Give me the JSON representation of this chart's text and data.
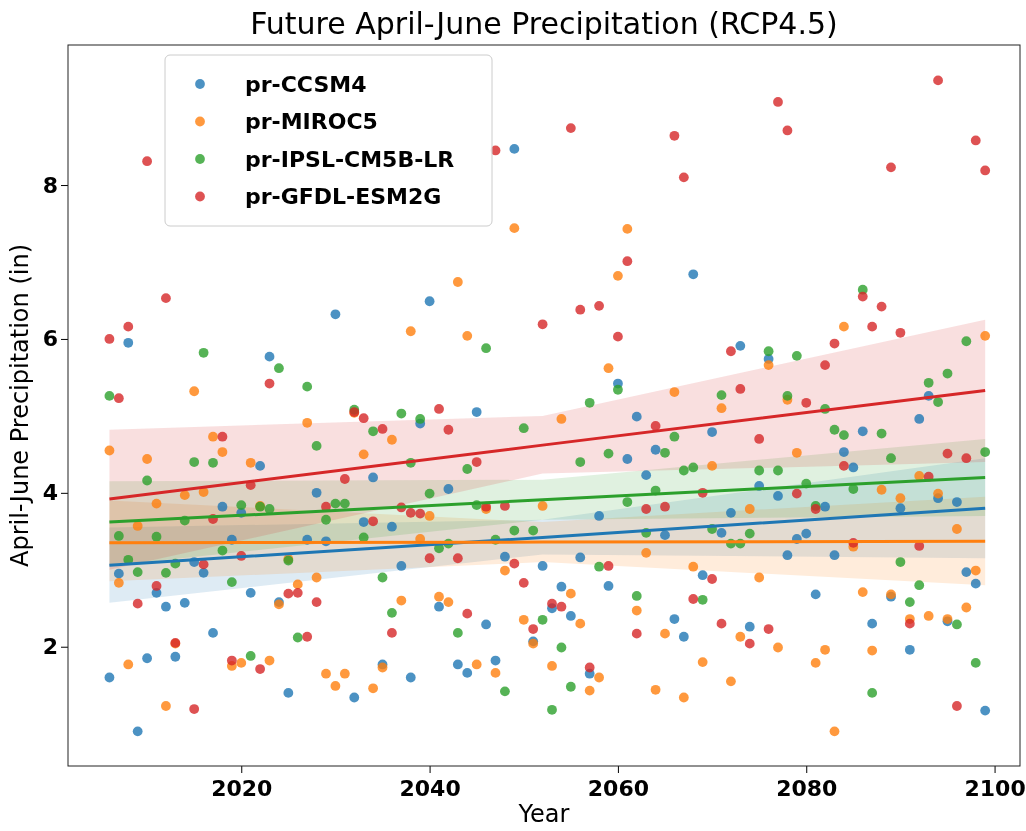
{
  "chart_data": {
    "type": "scatter",
    "title": "Future April-June Precipitation (RCP4.5)",
    "xlabel": "Year",
    "ylabel": "April-June Precipitation (in)",
    "xlim": [
      2001.6,
      2102.7
    ],
    "ylim": [
      0.45,
      9.82
    ],
    "xticks": [
      2020,
      2040,
      2060,
      2080,
      2100
    ],
    "yticks": [
      2,
      4,
      6,
      8
    ],
    "grid": false,
    "legend": "top left",
    "marker": "circle",
    "series": [
      {
        "name": "pr-CCSM4",
        "color": "#1f77b4",
        "x": [
          2006,
          2007,
          2008,
          2009,
          2010,
          2011,
          2012,
          2013,
          2014,
          2015,
          2016,
          2017,
          2018,
          2019,
          2020,
          2021,
          2022,
          2023,
          2024,
          2025,
          2027,
          2028,
          2029,
          2030,
          2032,
          2033,
          2034,
          2035,
          2036,
          2037,
          2038,
          2039,
          2040,
          2041,
          2042,
          2043,
          2044,
          2045,
          2046,
          2047,
          2048,
          2049,
          2051,
          2052,
          2053,
          2054,
          2055,
          2056,
          2057,
          2058,
          2059,
          2060,
          2061,
          2062,
          2063,
          2064,
          2065,
          2066,
          2067,
          2068,
          2069,
          2070,
          2071,
          2072,
          2073,
          2074,
          2075,
          2076,
          2077,
          2078,
          2079,
          2080,
          2081,
          2082,
          2083,
          2084,
          2085,
          2086,
          2087,
          2089,
          2090,
          2091,
          2092,
          2093,
          2094,
          2095,
          2096,
          2097,
          2098,
          2099
        ],
        "values": [
          1.6,
          2.95,
          5.95,
          0.9,
          1.85,
          2.7,
          2.52,
          1.87,
          2.57,
          3.1,
          2.96,
          2.18,
          3.82,
          3.39,
          3.74,
          2.7,
          4.35,
          5.77,
          2.58,
          1.4,
          3.39,
          4.0,
          3.37,
          6.32,
          1.34,
          3.62,
          4.2,
          1.77,
          3.56,
          3.05,
          1.6,
          4.9,
          6.49,
          2.52,
          4.05,
          1.77,
          1.66,
          5.05,
          2.29,
          1.82,
          3.17,
          8.47,
          2.07,
          3.05,
          2.5,
          2.78,
          2.4,
          3.16,
          1.65,
          3.7,
          2.79,
          5.42,
          4.44,
          4.99,
          4.23,
          4.56,
          3.45,
          2.36,
          2.13,
          6.84,
          2.93,
          4.79,
          3.48,
          3.74,
          5.91,
          2.26,
          4.09,
          5.74,
          3.96,
          3.19,
          3.4,
          3.47,
          2.68,
          3.82,
          3.19,
          4.53,
          4.33,
          4.8,
          2.3,
          2.65,
          3.8,
          1.96,
          4.96,
          5.26,
          3.93,
          2.33,
          3.88,
          2.97,
          2.82,
          1.17
        ]
      },
      {
        "name": "pr-MIROC5",
        "color": "#ff7f0e",
        "x": [
          2006,
          2007,
          2008,
          2009,
          2010,
          2011,
          2012,
          2013,
          2014,
          2015,
          2016,
          2017,
          2018,
          2019,
          2020,
          2021,
          2022,
          2023,
          2024,
          2025,
          2026,
          2027,
          2028,
          2029,
          2030,
          2031,
          2032,
          2033,
          2034,
          2035,
          2036,
          2037,
          2038,
          2039,
          2040,
          2041,
          2042,
          2043,
          2044,
          2045,
          2046,
          2047,
          2048,
          2049,
          2050,
          2051,
          2052,
          2053,
          2054,
          2055,
          2056,
          2057,
          2058,
          2059,
          2060,
          2061,
          2062,
          2063,
          2064,
          2065,
          2066,
          2067,
          2068,
          2069,
          2070,
          2071,
          2072,
          2073,
          2074,
          2075,
          2076,
          2077,
          2078,
          2079,
          2081,
          2082,
          2083,
          2084,
          2085,
          2086,
          2087,
          2088,
          2089,
          2090,
          2091,
          2092,
          2093,
          2094,
          2095,
          2096,
          2097,
          2098,
          2099
        ],
        "values": [
          4.55,
          2.83,
          1.77,
          3.57,
          4.44,
          3.86,
          1.23,
          2.04,
          3.97,
          5.32,
          4.01,
          4.73,
          4.53,
          1.75,
          1.79,
          4.39,
          3.83,
          1.82,
          2.55,
          3.14,
          2.81,
          4.91,
          2.9,
          1.65,
          1.49,
          1.65,
          5.04,
          4.5,
          1.46,
          1.73,
          4.69,
          2.6,
          6.1,
          3.4,
          3.7,
          2.65,
          2.58,
          6.74,
          6.04,
          1.77,
          3.79,
          1.66,
          2.99,
          7.44,
          2.35,
          2.04,
          3.83,
          1.75,
          4.96,
          2.69,
          2.3,
          1.43,
          1.6,
          5.62,
          6.82,
          7.43,
          2.47,
          3.22,
          1.44,
          2.17,
          5.31,
          1.34,
          3.04,
          1.8,
          4.35,
          5.1,
          1.55,
          2.13,
          3.79,
          2.9,
          5.66,
          1.99,
          5.21,
          4.52,
          1.79,
          1.96,
          0.9,
          6.16,
          3.3,
          2.71,
          1.95,
          4.04,
          2.68,
          3.93,
          2.36,
          4.22,
          2.4,
          3.99,
          2.36,
          3.53,
          2.51,
          2.99,
          6.04
        ]
      },
      {
        "name": "pr-IPSL-CM5B-LR",
        "color": "#2ca02c",
        "x": [
          2006,
          2007,
          2008,
          2009,
          2010,
          2011,
          2012,
          2013,
          2014,
          2015,
          2016,
          2017,
          2018,
          2019,
          2020,
          2021,
          2022,
          2023,
          2024,
          2025,
          2026,
          2027,
          2028,
          2029,
          2030,
          2031,
          2032,
          2033,
          2034,
          2035,
          2036,
          2037,
          2038,
          2039,
          2040,
          2041,
          2042,
          2043,
          2044,
          2045,
          2046,
          2047,
          2048,
          2049,
          2050,
          2051,
          2052,
          2053,
          2054,
          2055,
          2056,
          2057,
          2058,
          2059,
          2060,
          2061,
          2062,
          2063,
          2064,
          2065,
          2066,
          2067,
          2068,
          2069,
          2070,
          2071,
          2072,
          2073,
          2074,
          2075,
          2076,
          2077,
          2078,
          2079,
          2080,
          2081,
          2082,
          2083,
          2084,
          2085,
          2086,
          2087,
          2088,
          2089,
          2090,
          2091,
          2092,
          2093,
          2094,
          2095,
          2096,
          2097,
          2098,
          2099
        ],
        "values": [
          5.26,
          3.44,
          3.13,
          2.97,
          4.16,
          3.43,
          2.96,
          3.08,
          3.64,
          4.4,
          5.82,
          4.39,
          3.25,
          2.84,
          3.84,
          1.88,
          3.82,
          3.79,
          5.62,
          3.12,
          2.12,
          5.38,
          4.61,
          3.65,
          3.86,
          3.86,
          5.08,
          3.42,
          4.8,
          2.9,
          2.44,
          5.03,
          4.39,
          4.96,
          3.99,
          3.28,
          3.34,
          2.18,
          4.31,
          3.84,
          5.88,
          3.39,
          1.42,
          3.51,
          4.84,
          3.51,
          2.35,
          1.18,
          1.99,
          1.48,
          4.4,
          5.17,
          3.04,
          4.51,
          5.34,
          3.88,
          2.66,
          3.48,
          4.03,
          4.52,
          4.73,
          4.29,
          4.33,
          2.61,
          3.53,
          5.27,
          3.34,
          3.34,
          3.47,
          4.29,
          5.84,
          4.29,
          5.26,
          5.78,
          4.12,
          3.83,
          5.09,
          4.82,
          4.75,
          4.05,
          6.64,
          1.4,
          4.77,
          4.45,
          3.1,
          2.58,
          2.8,
          5.43,
          5.18,
          5.55,
          2.29,
          5.97,
          1.79,
          4.53
        ]
      },
      {
        "name": "pr-GFDL-ESM2G",
        "color": "#d62728",
        "x": [
          2006,
          2007,
          2008,
          2009,
          2010,
          2011,
          2012,
          2013,
          2015,
          2016,
          2017,
          2018,
          2019,
          2020,
          2021,
          2022,
          2023,
          2025,
          2026,
          2027,
          2028,
          2029,
          2031,
          2032,
          2033,
          2034,
          2035,
          2036,
          2037,
          2038,
          2039,
          2040,
          2041,
          2042,
          2043,
          2044,
          2045,
          2046,
          2047,
          2048,
          2049,
          2050,
          2051,
          2052,
          2053,
          2054,
          2055,
          2056,
          2057,
          2058,
          2059,
          2060,
          2061,
          2062,
          2063,
          2064,
          2065,
          2066,
          2067,
          2068,
          2069,
          2070,
          2071,
          2072,
          2073,
          2074,
          2075,
          2076,
          2077,
          2078,
          2079,
          2080,
          2081,
          2082,
          2083,
          2084,
          2085,
          2086,
          2087,
          2088,
          2089,
          2090,
          2091,
          2092,
          2093,
          2094,
          2095,
          2096,
          2097,
          2098,
          2099
        ],
        "values": [
          6.0,
          5.23,
          6.16,
          2.56,
          8.31,
          2.79,
          6.53,
          2.05,
          1.19,
          3.07,
          3.66,
          4.73,
          1.82,
          3.18,
          4.1,
          1.71,
          5.42,
          2.69,
          2.7,
          2.13,
          2.58,
          3.82,
          4.18,
          5.05,
          4.97,
          3.63,
          4.83,
          2.18,
          3.81,
          3.74,
          3.73,
          3.15,
          5.09,
          4.82,
          3.15,
          2.43,
          4.4,
          3.82,
          8.45,
          3.83,
          3.08,
          2.83,
          2.23,
          6.19,
          2.56,
          2.52,
          8.74,
          6.38,
          1.73,
          6.43,
          3.05,
          6.03,
          7.01,
          2.17,
          3.79,
          4.87,
          3.82,
          8.64,
          8.1,
          2.62,
          4.0,
          2.88,
          2.3,
          5.84,
          5.35,
          2.04,
          4.7,
          2.23,
          9.08,
          8.71,
          3.99,
          5.17,
          3.79,
          5.66,
          5.94,
          4.35,
          3.35,
          6.55,
          6.16,
          6.42,
          8.23,
          6.08,
          2.3,
          3.31,
          4.21,
          9.36,
          4.51,
          1.23,
          4.45,
          8.58,
          8.19
        ]
      },
      {
        "type": "line",
        "marker": "none",
        "color": "#1f77b4",
        "x": [
          2006,
          2052,
          2099
        ],
        "values": [
          3.06,
          3.42,
          3.8
        ],
        "lower": [
          2.57,
          3.2,
          3.15
        ],
        "upper": [
          3.55,
          3.65,
          4.45
        ]
      },
      {
        "type": "line",
        "marker": "none",
        "color": "#ff7f0e",
        "x": [
          2006,
          2052,
          2099
        ],
        "values": [
          3.35,
          3.36,
          3.37
        ],
        "lower": [
          2.85,
          3.1,
          2.8
        ],
        "upper": [
          3.9,
          3.62,
          3.95
        ]
      },
      {
        "type": "line",
        "marker": "none",
        "color": "#2ca02c",
        "x": [
          2006,
          2052,
          2099
        ],
        "values": [
          3.62,
          3.91,
          4.2
        ],
        "lower": [
          3.05,
          3.65,
          3.7
        ],
        "upper": [
          4.15,
          4.17,
          4.7
        ]
      },
      {
        "type": "line",
        "marker": "none",
        "color": "#d62728",
        "x": [
          2006,
          2052,
          2099
        ],
        "values": [
          3.92,
          4.62,
          5.33
        ],
        "lower": [
          3.0,
          4.25,
          4.4
        ],
        "upper": [
          4.82,
          5.0,
          6.25
        ]
      }
    ]
  }
}
